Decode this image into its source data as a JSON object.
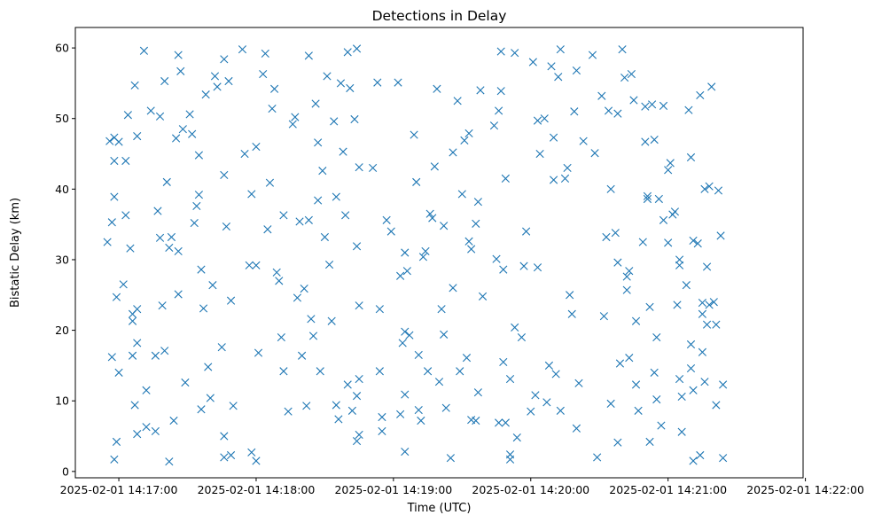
{
  "chart_data": {
    "type": "scatter",
    "title": "Detections in Delay",
    "xlabel": "Time (UTC)",
    "ylabel": "Bistatic Delay (km)",
    "x_is_datetime": true,
    "xlim": [
      "2025-02-01 14:16:41",
      "2025-02-01 14:21:59"
    ],
    "ylim": [
      -0.9,
      62.9
    ],
    "xticks": [
      "2025-02-01 14:17:00",
      "2025-02-01 14:18:00",
      "2025-02-01 14:19:00",
      "2025-02-01 14:20:00",
      "2025-02-01 14:21:00",
      "2025-02-01 14:22:00"
    ],
    "yticks": [
      0,
      10,
      20,
      30,
      40,
      50,
      60
    ],
    "marker": "x",
    "color": "#1f77b4",
    "grid": false,
    "legend": "none",
    "points": [
      [
        "2025-02-01 14:16:55",
        32.5
      ],
      [
        "2025-02-01 14:16:56",
        46.8
      ],
      [
        "2025-02-01 14:16:57",
        35.3
      ],
      [
        "2025-02-01 14:16:57",
        16.2
      ],
      [
        "2025-02-01 14:16:58",
        44.0
      ],
      [
        "2025-02-01 14:16:58",
        38.9
      ],
      [
        "2025-02-01 14:16:59",
        24.7
      ],
      [
        "2025-02-01 14:17:00",
        14.0
      ],
      [
        "2025-02-01 14:16:59",
        4.2
      ],
      [
        "2025-02-01 14:16:58",
        1.7
      ],
      [
        "2025-02-01 14:16:58",
        47.3
      ],
      [
        "2025-02-01 14:17:00",
        46.7
      ],
      [
        "2025-02-01 14:17:02",
        26.5
      ],
      [
        "2025-02-01 14:17:03",
        44.0
      ],
      [
        "2025-02-01 14:17:03",
        36.3
      ],
      [
        "2025-02-01 14:17:04",
        50.5
      ],
      [
        "2025-02-01 14:17:05",
        31.6
      ],
      [
        "2025-02-01 14:17:06",
        21.3
      ],
      [
        "2025-02-01 14:17:06",
        22.3
      ],
      [
        "2025-02-01 14:17:06",
        16.4
      ],
      [
        "2025-02-01 14:17:07",
        54.7
      ],
      [
        "2025-02-01 14:17:08",
        47.5
      ],
      [
        "2025-02-01 14:17:08",
        23.0
      ],
      [
        "2025-02-01 14:17:08",
        18.2
      ],
      [
        "2025-02-01 14:17:07",
        9.4
      ],
      [
        "2025-02-01 14:17:08",
        5.3
      ],
      [
        "2025-02-01 14:17:11",
        59.6
      ],
      [
        "2025-02-01 14:17:12",
        11.5
      ],
      [
        "2025-02-01 14:17:12",
        6.3
      ],
      [
        "2025-02-01 14:17:14",
        51.1
      ],
      [
        "2025-02-01 14:17:16",
        5.7
      ],
      [
        "2025-02-01 14:17:16",
        16.4
      ],
      [
        "2025-02-01 14:17:17",
        36.9
      ],
      [
        "2025-02-01 14:17:18",
        33.1
      ],
      [
        "2025-02-01 14:17:18",
        50.3
      ],
      [
        "2025-02-01 14:17:19",
        23.5
      ],
      [
        "2025-02-01 14:17:20",
        55.3
      ],
      [
        "2025-02-01 14:17:20",
        17.1
      ],
      [
        "2025-02-01 14:17:21",
        41.0
      ],
      [
        "2025-02-01 14:17:22",
        31.7
      ],
      [
        "2025-02-01 14:17:23",
        33.2
      ],
      [
        "2025-02-01 14:17:22",
        1.4
      ],
      [
        "2025-02-01 14:17:24",
        7.2
      ],
      [
        "2025-02-01 14:17:25",
        47.2
      ],
      [
        "2025-02-01 14:17:26",
        25.1
      ],
      [
        "2025-02-01 14:17:26",
        31.2
      ],
      [
        "2025-02-01 14:17:26",
        59.0
      ],
      [
        "2025-02-01 14:17:27",
        56.7
      ],
      [
        "2025-02-01 14:17:28",
        48.5
      ],
      [
        "2025-02-01 14:17:29",
        12.6
      ],
      [
        "2025-02-01 14:17:31",
        50.6
      ],
      [
        "2025-02-01 14:17:32",
        47.8
      ],
      [
        "2025-02-01 14:17:33",
        35.2
      ],
      [
        "2025-02-01 14:17:34",
        37.6
      ],
      [
        "2025-02-01 14:17:35",
        39.2
      ],
      [
        "2025-02-01 14:17:35",
        44.8
      ],
      [
        "2025-02-01 14:17:36",
        28.6
      ],
      [
        "2025-02-01 14:17:36",
        8.8
      ],
      [
        "2025-02-01 14:17:37",
        23.1
      ],
      [
        "2025-02-01 14:17:38",
        53.4
      ],
      [
        "2025-02-01 14:17:39",
        14.8
      ],
      [
        "2025-02-01 14:17:40",
        10.4
      ],
      [
        "2025-02-01 14:17:41",
        26.4
      ],
      [
        "2025-02-01 14:17:42",
        56.0
      ],
      [
        "2025-02-01 14:17:43",
        54.5
      ],
      [
        "2025-02-01 14:17:45",
        17.6
      ],
      [
        "2025-02-01 14:17:46",
        58.4
      ],
      [
        "2025-02-01 14:17:46",
        42.0
      ],
      [
        "2025-02-01 14:17:47",
        34.7
      ],
      [
        "2025-02-01 14:17:48",
        55.3
      ],
      [
        "2025-02-01 14:17:49",
        24.2
      ],
      [
        "2025-02-01 14:17:50",
        9.3
      ],
      [
        "2025-02-01 14:17:46",
        5.0
      ],
      [
        "2025-02-01 14:17:46",
        2.0
      ],
      [
        "2025-02-01 14:17:49",
        2.3
      ],
      [
        "2025-02-01 14:17:54",
        59.8
      ],
      [
        "2025-02-01 14:17:55",
        45.0
      ],
      [
        "2025-02-01 14:17:57",
        29.2
      ],
      [
        "2025-02-01 14:17:58",
        39.3
      ],
      [
        "2025-02-01 14:17:58",
        2.7
      ],
      [
        "2025-02-01 14:18:00",
        46.0
      ],
      [
        "2025-02-01 14:18:00",
        29.2
      ],
      [
        "2025-02-01 14:18:01",
        16.8
      ],
      [
        "2025-02-01 14:18:00",
        1.5
      ],
      [
        "2025-02-01 14:18:03",
        56.3
      ],
      [
        "2025-02-01 14:18:04",
        59.2
      ],
      [
        "2025-02-01 14:18:05",
        34.3
      ],
      [
        "2025-02-01 14:18:06",
        40.9
      ],
      [
        "2025-02-01 14:18:07",
        51.4
      ],
      [
        "2025-02-01 14:18:08",
        54.2
      ],
      [
        "2025-02-01 14:18:09",
        28.2
      ],
      [
        "2025-02-01 14:18:10",
        27.0
      ],
      [
        "2025-02-01 14:18:11",
        19.0
      ],
      [
        "2025-02-01 14:18:12",
        14.2
      ],
      [
        "2025-02-01 14:18:12",
        36.3
      ],
      [
        "2025-02-01 14:18:14",
        8.5
      ],
      [
        "2025-02-01 14:18:16",
        49.2
      ],
      [
        "2025-02-01 14:18:17",
        50.2
      ],
      [
        "2025-02-01 14:18:18",
        24.6
      ],
      [
        "2025-02-01 14:18:19",
        35.4
      ],
      [
        "2025-02-01 14:18:20",
        16.4
      ],
      [
        "2025-02-01 14:18:21",
        25.9
      ],
      [
        "2025-02-01 14:18:22",
        9.3
      ],
      [
        "2025-02-01 14:18:23",
        58.9
      ],
      [
        "2025-02-01 14:18:23",
        35.6
      ],
      [
        "2025-02-01 14:18:24",
        21.6
      ],
      [
        "2025-02-01 14:18:25",
        19.2
      ],
      [
        "2025-02-01 14:18:26",
        52.1
      ],
      [
        "2025-02-01 14:18:27",
        46.6
      ],
      [
        "2025-02-01 14:18:27",
        38.4
      ],
      [
        "2025-02-01 14:18:28",
        14.2
      ],
      [
        "2025-02-01 14:18:29",
        42.6
      ],
      [
        "2025-02-01 14:18:30",
        33.2
      ],
      [
        "2025-02-01 14:18:31",
        56.0
      ],
      [
        "2025-02-01 14:18:32",
        29.3
      ],
      [
        "2025-02-01 14:18:33",
        21.3
      ],
      [
        "2025-02-01 14:18:34",
        49.6
      ],
      [
        "2025-02-01 14:18:35",
        38.9
      ],
      [
        "2025-02-01 14:18:35",
        9.4
      ],
      [
        "2025-02-01 14:18:36",
        7.4
      ],
      [
        "2025-02-01 14:18:37",
        55.0
      ],
      [
        "2025-02-01 14:18:38",
        45.3
      ],
      [
        "2025-02-01 14:18:39",
        36.3
      ],
      [
        "2025-02-01 14:18:40",
        59.4
      ],
      [
        "2025-02-01 14:18:40",
        12.3
      ],
      [
        "2025-02-01 14:18:41",
        54.3
      ],
      [
        "2025-02-01 14:18:42",
        8.6
      ],
      [
        "2025-02-01 14:18:43",
        49.9
      ],
      [
        "2025-02-01 14:18:44",
        31.9
      ],
      [
        "2025-02-01 14:18:45",
        43.1
      ],
      [
        "2025-02-01 14:18:45",
        23.5
      ],
      [
        "2025-02-01 14:18:45",
        5.2
      ],
      [
        "2025-02-01 14:18:44",
        59.9
      ],
      [
        "2025-02-01 14:18:44",
        4.3
      ],
      [
        "2025-02-01 14:18:45",
        13.1
      ],
      [
        "2025-02-01 14:18:44",
        10.7
      ],
      [
        "2025-02-01 14:18:51",
        43.0
      ],
      [
        "2025-02-01 14:18:53",
        55.1
      ],
      [
        "2025-02-01 14:18:54",
        14.2
      ],
      [
        "2025-02-01 14:18:54",
        23.0
      ],
      [
        "2025-02-01 14:18:55",
        7.7
      ],
      [
        "2025-02-01 14:18:55",
        5.7
      ],
      [
        "2025-02-01 14:18:57",
        35.6
      ],
      [
        "2025-02-01 14:18:59",
        34.0
      ],
      [
        "2025-02-01 14:19:02",
        55.1
      ],
      [
        "2025-02-01 14:19:03",
        27.7
      ],
      [
        "2025-02-01 14:19:03",
        8.1
      ],
      [
        "2025-02-01 14:19:04",
        18.2
      ],
      [
        "2025-02-01 14:19:05",
        19.8
      ],
      [
        "2025-02-01 14:19:05",
        31.0
      ],
      [
        "2025-02-01 14:19:06",
        28.4
      ],
      [
        "2025-02-01 14:19:05",
        10.9
      ],
      [
        "2025-02-01 14:19:07",
        19.3
      ],
      [
        "2025-02-01 14:19:05",
        2.8
      ],
      [
        "2025-02-01 14:19:09",
        47.7
      ],
      [
        "2025-02-01 14:19:10",
        41.0
      ],
      [
        "2025-02-01 14:19:11",
        16.5
      ],
      [
        "2025-02-01 14:19:11",
        8.7
      ],
      [
        "2025-02-01 14:19:12",
        7.2
      ],
      [
        "2025-02-01 14:19:13",
        30.4
      ],
      [
        "2025-02-01 14:19:14",
        31.2
      ],
      [
        "2025-02-01 14:19:15",
        14.2
      ],
      [
        "2025-02-01 14:19:16",
        36.5
      ],
      [
        "2025-02-01 14:19:17",
        35.9
      ],
      [
        "2025-02-01 14:19:18",
        43.2
      ],
      [
        "2025-02-01 14:19:19",
        54.2
      ],
      [
        "2025-02-01 14:19:20",
        12.7
      ],
      [
        "2025-02-01 14:19:21",
        23.0
      ],
      [
        "2025-02-01 14:19:22",
        34.8
      ],
      [
        "2025-02-01 14:19:22",
        19.4
      ],
      [
        "2025-02-01 14:19:23",
        9.0
      ],
      [
        "2025-02-01 14:19:25",
        1.9
      ],
      [
        "2025-02-01 14:19:26",
        45.2
      ],
      [
        "2025-02-01 14:19:26",
        26.0
      ],
      [
        "2025-02-01 14:19:28",
        52.5
      ],
      [
        "2025-02-01 14:19:29",
        14.2
      ],
      [
        "2025-02-01 14:19:30",
        39.3
      ],
      [
        "2025-02-01 14:19:31",
        46.9
      ],
      [
        "2025-02-01 14:19:32",
        16.1
      ],
      [
        "2025-02-01 14:19:33",
        47.9
      ],
      [
        "2025-02-01 14:19:33",
        32.6
      ],
      [
        "2025-02-01 14:19:34",
        31.5
      ],
      [
        "2025-02-01 14:19:34",
        7.3
      ],
      [
        "2025-02-01 14:19:36",
        7.2
      ],
      [
        "2025-02-01 14:19:36",
        35.1
      ],
      [
        "2025-02-01 14:19:37",
        38.2
      ],
      [
        "2025-02-01 14:19:37",
        11.2
      ],
      [
        "2025-02-01 14:19:38",
        54.0
      ],
      [
        "2025-02-01 14:19:39",
        24.8
      ],
      [
        "2025-02-01 14:19:44",
        49.0
      ],
      [
        "2025-02-01 14:19:45",
        30.1
      ],
      [
        "2025-02-01 14:19:46",
        51.1
      ],
      [
        "2025-02-01 14:19:47",
        53.9
      ],
      [
        "2025-02-01 14:19:47",
        59.5
      ],
      [
        "2025-02-01 14:19:48",
        28.6
      ],
      [
        "2025-02-01 14:19:49",
        41.5
      ],
      [
        "2025-02-01 14:19:48",
        15.5
      ],
      [
        "2025-02-01 14:19:46",
        6.9
      ],
      [
        "2025-02-01 14:19:49",
        6.9
      ],
      [
        "2025-02-01 14:19:51",
        1.7
      ],
      [
        "2025-02-01 14:19:51",
        2.4
      ],
      [
        "2025-02-01 14:19:51",
        13.1
      ],
      [
        "2025-02-01 14:19:53",
        59.3
      ],
      [
        "2025-02-01 14:19:53",
        20.4
      ],
      [
        "2025-02-01 14:19:54",
        4.8
      ],
      [
        "2025-02-01 14:19:56",
        19.0
      ],
      [
        "2025-02-01 14:19:57",
        29.1
      ],
      [
        "2025-02-01 14:19:58",
        34.0
      ],
      [
        "2025-02-01 14:20:00",
        8.5
      ],
      [
        "2025-02-01 14:20:01",
        58.0
      ],
      [
        "2025-02-01 14:20:02",
        10.8
      ],
      [
        "2025-02-01 14:20:03",
        49.7
      ],
      [
        "2025-02-01 14:20:03",
        28.9
      ],
      [
        "2025-02-01 14:20:04",
        45.0
      ],
      [
        "2025-02-01 14:20:06",
        50.0
      ],
      [
        "2025-02-01 14:20:07",
        9.8
      ],
      [
        "2025-02-01 14:20:08",
        15.0
      ],
      [
        "2025-02-01 14:20:09",
        57.4
      ],
      [
        "2025-02-01 14:20:10",
        47.3
      ],
      [
        "2025-02-01 14:20:10",
        41.3
      ],
      [
        "2025-02-01 14:20:11",
        13.8
      ],
      [
        "2025-02-01 14:20:12",
        55.9
      ],
      [
        "2025-02-01 14:20:13",
        59.8
      ],
      [
        "2025-02-01 14:20:13",
        8.6
      ],
      [
        "2025-02-01 14:20:15",
        41.5
      ],
      [
        "2025-02-01 14:20:16",
        43.0
      ],
      [
        "2025-02-01 14:20:17",
        25.0
      ],
      [
        "2025-02-01 14:20:18",
        22.3
      ],
      [
        "2025-02-01 14:20:19",
        51.0
      ],
      [
        "2025-02-01 14:20:20",
        56.8
      ],
      [
        "2025-02-01 14:20:20",
        6.1
      ],
      [
        "2025-02-01 14:20:21",
        12.5
      ],
      [
        "2025-02-01 14:20:23",
        46.8
      ],
      [
        "2025-02-01 14:20:27",
        59.0
      ],
      [
        "2025-02-01 14:20:28",
        45.1
      ],
      [
        "2025-02-01 14:20:29",
        2.0
      ],
      [
        "2025-02-01 14:20:31",
        53.2
      ],
      [
        "2025-02-01 14:20:32",
        22.0
      ],
      [
        "2025-02-01 14:20:33",
        33.2
      ],
      [
        "2025-02-01 14:20:34",
        51.1
      ],
      [
        "2025-02-01 14:20:35",
        40.0
      ],
      [
        "2025-02-01 14:20:35",
        9.6
      ],
      [
        "2025-02-01 14:20:37",
        33.8
      ],
      [
        "2025-02-01 14:20:38",
        50.7
      ],
      [
        "2025-02-01 14:20:38",
        29.6
      ],
      [
        "2025-02-01 14:20:39",
        15.3
      ],
      [
        "2025-02-01 14:20:38",
        4.1
      ],
      [
        "2025-02-01 14:20:40",
        59.8
      ],
      [
        "2025-02-01 14:20:41",
        55.8
      ],
      [
        "2025-02-01 14:20:42",
        27.6
      ],
      [
        "2025-02-01 14:20:42",
        25.7
      ],
      [
        "2025-02-01 14:20:43",
        28.4
      ],
      [
        "2025-02-01 14:20:43",
        16.1
      ],
      [
        "2025-02-01 14:20:44",
        56.3
      ],
      [
        "2025-02-01 14:20:45",
        52.6
      ],
      [
        "2025-02-01 14:20:46",
        21.3
      ],
      [
        "2025-02-01 14:20:46",
        12.3
      ],
      [
        "2025-02-01 14:20:47",
        8.6
      ],
      [
        "2025-02-01 14:20:49",
        32.5
      ],
      [
        "2025-02-01 14:20:50",
        51.7
      ],
      [
        "2025-02-01 14:20:50",
        46.7
      ],
      [
        "2025-02-01 14:20:51",
        39.0
      ],
      [
        "2025-02-01 14:20:51",
        38.6
      ],
      [
        "2025-02-01 14:20:52",
        23.3
      ],
      [
        "2025-02-01 14:20:52",
        4.2
      ],
      [
        "2025-02-01 14:20:53",
        52.0
      ],
      [
        "2025-02-01 14:20:54",
        14.0
      ],
      [
        "2025-02-01 14:20:54",
        47.0
      ],
      [
        "2025-02-01 14:20:55",
        19.0
      ],
      [
        "2025-02-01 14:20:55",
        10.2
      ],
      [
        "2025-02-01 14:20:56",
        38.6
      ],
      [
        "2025-02-01 14:20:57",
        6.5
      ],
      [
        "2025-02-01 14:20:58",
        35.6
      ],
      [
        "2025-02-01 14:20:58",
        51.8
      ],
      [
        "2025-02-01 14:21:00",
        32.4
      ],
      [
        "2025-02-01 14:21:00",
        42.7
      ],
      [
        "2025-02-01 14:21:01",
        43.7
      ],
      [
        "2025-02-01 14:21:02",
        36.4
      ],
      [
        "2025-02-01 14:21:03",
        36.8
      ],
      [
        "2025-02-01 14:21:04",
        23.6
      ],
      [
        "2025-02-01 14:21:05",
        13.1
      ],
      [
        "2025-02-01 14:21:05",
        29.2
      ],
      [
        "2025-02-01 14:21:05",
        30.0
      ],
      [
        "2025-02-01 14:21:06",
        10.6
      ],
      [
        "2025-02-01 14:21:06",
        5.6
      ],
      [
        "2025-02-01 14:21:08",
        26.4
      ],
      [
        "2025-02-01 14:21:09",
        51.2
      ],
      [
        "2025-02-01 14:21:10",
        44.5
      ],
      [
        "2025-02-01 14:21:10",
        18.0
      ],
      [
        "2025-02-01 14:21:10",
        14.6
      ],
      [
        "2025-02-01 14:21:11",
        32.7
      ],
      [
        "2025-02-01 14:21:11",
        11.5
      ],
      [
        "2025-02-01 14:21:11",
        1.5
      ],
      [
        "2025-02-01 14:21:13",
        32.3
      ],
      [
        "2025-02-01 14:21:14",
        53.3
      ],
      [
        "2025-02-01 14:21:14",
        2.3
      ],
      [
        "2025-02-01 14:21:15",
        23.9
      ],
      [
        "2025-02-01 14:21:15",
        22.3
      ],
      [
        "2025-02-01 14:21:15",
        16.9
      ],
      [
        "2025-02-01 14:21:16",
        40.0
      ],
      [
        "2025-02-01 14:21:16",
        12.7
      ],
      [
        "2025-02-01 14:21:17",
        29.0
      ],
      [
        "2025-02-01 14:21:17",
        20.8
      ],
      [
        "2025-02-01 14:21:18",
        40.4
      ],
      [
        "2025-02-01 14:21:18",
        23.6
      ],
      [
        "2025-02-01 14:21:19",
        54.5
      ],
      [
        "2025-02-01 14:21:20",
        24.0
      ],
      [
        "2025-02-01 14:21:21",
        9.4
      ],
      [
        "2025-02-01 14:21:21",
        20.8
      ],
      [
        "2025-02-01 14:21:22",
        39.8
      ],
      [
        "2025-02-01 14:21:23",
        33.4
      ],
      [
        "2025-02-01 14:21:24",
        12.3
      ],
      [
        "2025-02-01 14:21:24",
        1.9
      ]
    ]
  }
}
